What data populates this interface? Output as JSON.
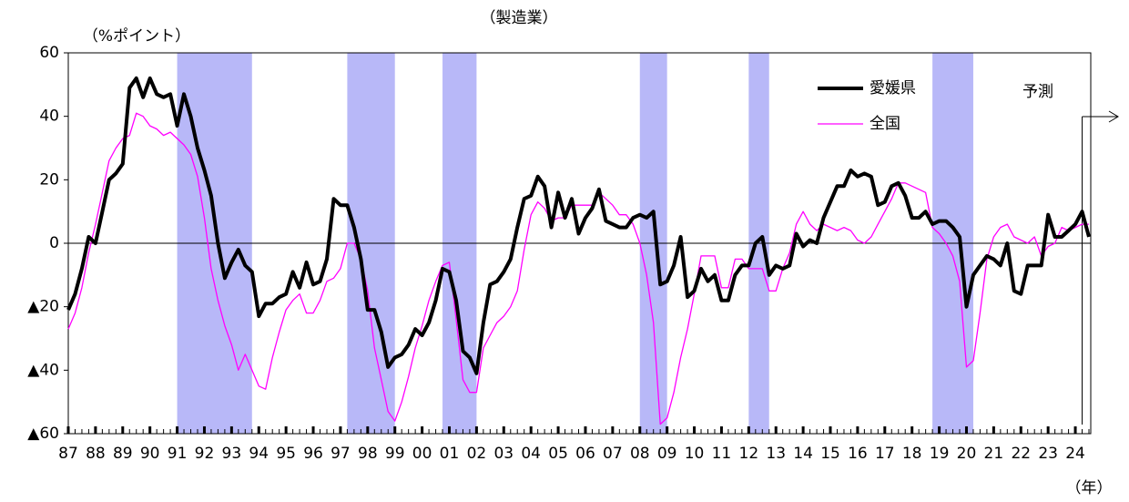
{
  "chart_data": {
    "type": "line",
    "title": "（製造業）",
    "y_axis_label": "（%ポイント）",
    "x_axis_label": "（年）",
    "forecast_label": "予測",
    "categories": [
      "87",
      null,
      null,
      null,
      "88",
      null,
      null,
      null,
      "89",
      null,
      null,
      null,
      "90",
      null,
      null,
      null,
      "91",
      null,
      null,
      null,
      "92",
      null,
      null,
      null,
      "93",
      null,
      null,
      null,
      "94",
      null,
      null,
      null,
      "95",
      null,
      null,
      null,
      "96",
      null,
      null,
      null,
      "97",
      null,
      null,
      null,
      "98",
      null,
      null,
      null,
      "99",
      null,
      null,
      null,
      "00",
      null,
      null,
      null,
      "01",
      null,
      null,
      null,
      "02",
      null,
      null,
      null,
      "03",
      null,
      null,
      null,
      "04",
      null,
      null,
      null,
      "05",
      null,
      null,
      null,
      "06",
      null,
      null,
      null,
      "07",
      null,
      null,
      null,
      "08",
      null,
      null,
      null,
      "09",
      null,
      null,
      null,
      "10",
      null,
      null,
      null,
      "11",
      null,
      null,
      null,
      "12",
      null,
      null,
      null,
      "13",
      null,
      null,
      null,
      "14",
      null,
      null,
      null,
      "15",
      null,
      null,
      null,
      "16",
      null,
      null,
      null,
      "17",
      null,
      null,
      null,
      "18",
      null,
      null,
      null,
      "19",
      null,
      null,
      null,
      "20",
      null,
      null,
      null,
      "21",
      null,
      null,
      null,
      "22",
      null,
      null,
      null,
      "23",
      null,
      null,
      null,
      "24",
      null,
      null
    ],
    "series": [
      {
        "name": "愛媛県",
        "color": "#000000",
        "width": 4,
        "values": [
          -21,
          -16,
          -8,
          2,
          0,
          10,
          20,
          22,
          25,
          49,
          52,
          46,
          52,
          47,
          46,
          47,
          37,
          47,
          40,
          30,
          23,
          15,
          0,
          -11,
          -6,
          -2,
          -7,
          -9,
          -23,
          -19,
          -19,
          -17,
          -16,
          -9,
          -14,
          -6,
          -13,
          -12,
          -5,
          14,
          12,
          12,
          5,
          -5,
          -21,
          -21,
          -28,
          -39,
          -36,
          -35,
          -32,
          -27,
          -29,
          -25,
          -18,
          -8,
          -9,
          -18,
          -34,
          -36,
          -41,
          -25,
          -13,
          -12,
          -9,
          -5,
          5,
          14,
          15,
          21,
          18,
          5,
          16,
          8,
          14,
          3,
          8,
          11,
          17,
          7,
          6,
          5,
          5,
          8,
          9,
          8,
          10,
          -13,
          -12,
          -7,
          2,
          -17,
          -15,
          -8,
          -12,
          -10,
          -18,
          -18,
          -10,
          -7,
          -7,
          0,
          2,
          -10,
          -7,
          -8,
          -7,
          3,
          -1,
          1,
          0,
          8,
          13,
          18,
          18,
          23,
          21,
          22,
          21,
          12,
          13,
          18,
          19,
          15,
          8,
          8,
          10,
          6,
          7,
          7,
          5,
          2,
          -20,
          -10,
          -7,
          -4,
          -5,
          -7,
          0,
          -15,
          -16,
          -7,
          -7,
          -7,
          9,
          2,
          2,
          4,
          6,
          10,
          2
        ]
      },
      {
        "name": "全国",
        "color": "#ff00ff",
        "width": 1.3,
        "values": [
          -27,
          -22,
          -14,
          -3,
          6,
          16,
          26,
          30,
          33,
          34,
          41,
          40,
          37,
          36,
          34,
          35,
          33,
          31,
          28,
          21,
          8,
          -8,
          -18,
          -26,
          -32,
          -40,
          -35,
          -40,
          -45,
          -46,
          -36,
          -28,
          -21,
          -18,
          -16,
          -22,
          -22,
          -18,
          -12,
          -11,
          -8,
          0,
          0,
          -5,
          -15,
          -33,
          -43,
          -53,
          -56,
          -50,
          -42,
          -33,
          -26,
          -18,
          -12,
          -7,
          -6,
          -24,
          -43,
          -47,
          -47,
          -33,
          -29,
          -25,
          -23,
          -20,
          -15,
          -2,
          9,
          13,
          11,
          7,
          8,
          8,
          12,
          12,
          12,
          12,
          16,
          14,
          12,
          9,
          9,
          6,
          0,
          -10,
          -25,
          -57,
          -55,
          -47,
          -36,
          -27,
          -16,
          -4,
          -4,
          -4,
          -14,
          -14,
          -5,
          -5,
          -8,
          -8,
          -8,
          -15,
          -15,
          -8,
          -3,
          6,
          10,
          6,
          4,
          6,
          5,
          4,
          5,
          4,
          1,
          0,
          2,
          6,
          10,
          14,
          19,
          19,
          18,
          17,
          16,
          5,
          3,
          0,
          -4,
          -12,
          -39,
          -37,
          -22,
          -5,
          2,
          5,
          6,
          2,
          1,
          0,
          2,
          -4,
          -1,
          0,
          5,
          4,
          5,
          6,
          6
        ]
      }
    ],
    "ylim": [
      -60,
      60
    ],
    "yticks": [
      {
        "value": -60,
        "label": "▲60"
      },
      {
        "value": -40,
        "label": "▲40"
      },
      {
        "value": -20,
        "label": "▲20"
      },
      0,
      20,
      40,
      60
    ],
    "shaded_ranges": [
      [
        16,
        27
      ],
      [
        41,
        48
      ],
      [
        55,
        60
      ],
      [
        84,
        88
      ],
      [
        100,
        103
      ],
      [
        127,
        133
      ]
    ],
    "shade_color": "#b8b8f8",
    "forecast_from_index": 149,
    "legend_position": "upper right"
  }
}
